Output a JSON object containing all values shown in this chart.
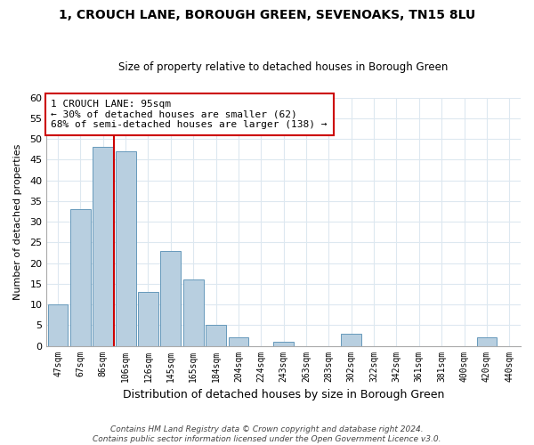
{
  "title": "1, CROUCH LANE, BOROUGH GREEN, SEVENOAKS, TN15 8LU",
  "subtitle": "Size of property relative to detached houses in Borough Green",
  "xlabel": "Distribution of detached houses by size in Borough Green",
  "ylabel": "Number of detached properties",
  "bar_labels": [
    "47sqm",
    "67sqm",
    "86sqm",
    "106sqm",
    "126sqm",
    "145sqm",
    "165sqm",
    "184sqm",
    "204sqm",
    "224sqm",
    "243sqm",
    "263sqm",
    "283sqm",
    "302sqm",
    "322sqm",
    "342sqm",
    "361sqm",
    "381sqm",
    "400sqm",
    "420sqm",
    "440sqm"
  ],
  "bar_values": [
    10,
    33,
    48,
    47,
    13,
    23,
    16,
    5,
    2,
    0,
    1,
    0,
    0,
    3,
    0,
    0,
    0,
    0,
    0,
    2,
    0
  ],
  "bar_color": "#b8cfe0",
  "bar_edge_color": "#6699bb",
  "vline_x_index": 2,
  "vline_color": "#cc0000",
  "ylim": [
    0,
    60
  ],
  "yticks": [
    0,
    5,
    10,
    15,
    20,
    25,
    30,
    35,
    40,
    45,
    50,
    55,
    60
  ],
  "annotation_title": "1 CROUCH LANE: 95sqm",
  "annotation_line1": "← 30% of detached houses are smaller (62)",
  "annotation_line2": "68% of semi-detached houses are larger (138) →",
  "annotation_box_color": "#ffffff",
  "annotation_box_edge": "#cc0000",
  "footer_line1": "Contains HM Land Registry data © Crown copyright and database right 2024.",
  "footer_line2": "Contains public sector information licensed under the Open Government Licence v3.0.",
  "bg_color": "#ffffff",
  "grid_color": "#dde8f0"
}
